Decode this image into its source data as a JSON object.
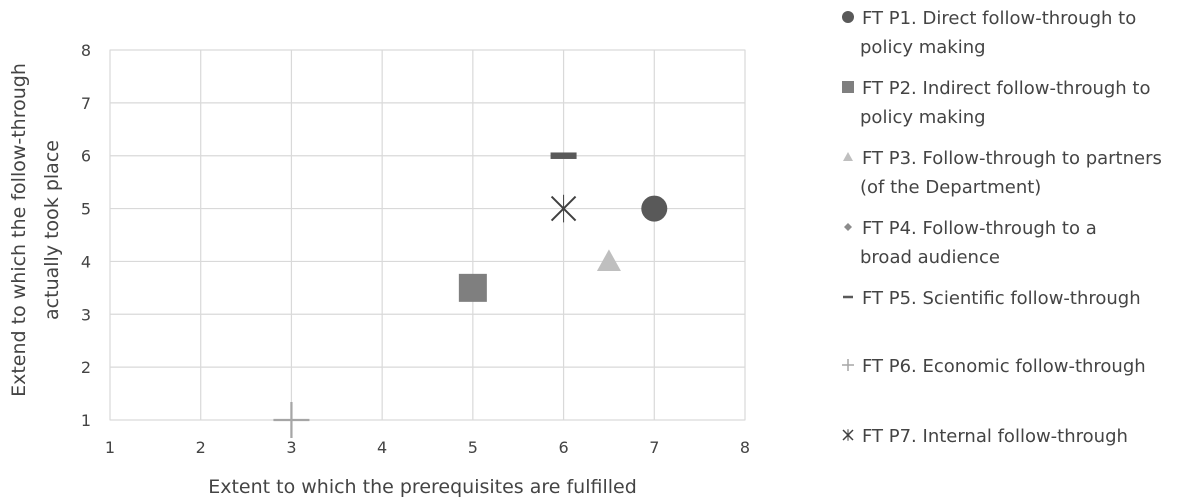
{
  "chart_data": {
    "type": "scatter",
    "xlabel": "Extent to which the prerequisites are fulfilled",
    "ylabel": [
      "Extend to which the follow-through",
      "actually took place"
    ],
    "xlim": [
      1,
      8
    ],
    "ylim": [
      1,
      8
    ],
    "xticks": [
      "1",
      "2",
      "3",
      "4",
      "5",
      "6",
      "7",
      "8"
    ],
    "yticks": [
      "1",
      "2",
      "3",
      "4",
      "5",
      "6",
      "7",
      "8"
    ],
    "grid": true,
    "legend_position": "right",
    "series": [
      {
        "name": [
          "FT P1. Direct follow-through to",
          "policy making"
        ],
        "marker": "circle",
        "color": "#595959",
        "x": 7,
        "y": 5
      },
      {
        "name": [
          "FT P2. Indirect follow-through to",
          "policy making"
        ],
        "marker": "square",
        "color": "#7f7f7f",
        "x": 5,
        "y": 3.5
      },
      {
        "name": [
          "FT P3. Follow-through to partners",
          "(of the Department)"
        ],
        "marker": "triangle",
        "color": "#bfbfbf",
        "x": 6.5,
        "y": 4
      },
      {
        "name": [
          "FT P4. Follow-through to a",
          "broad audience"
        ],
        "marker": "diamond",
        "color": "#8c8c8c",
        "x": null,
        "y": null
      },
      {
        "name": [
          "FT P5. Scientific follow-through"
        ],
        "marker": "dash",
        "color": "#595959",
        "x": 6,
        "y": 6
      },
      {
        "name": [
          "FT P6. Economic follow-through"
        ],
        "marker": "plus",
        "color": "#a6a6a6",
        "x": 3,
        "y": 1
      },
      {
        "name": [
          "FT P7. Internal follow-through"
        ],
        "marker": "x-star",
        "color": "#404040",
        "x": 6,
        "y": 5
      }
    ]
  }
}
